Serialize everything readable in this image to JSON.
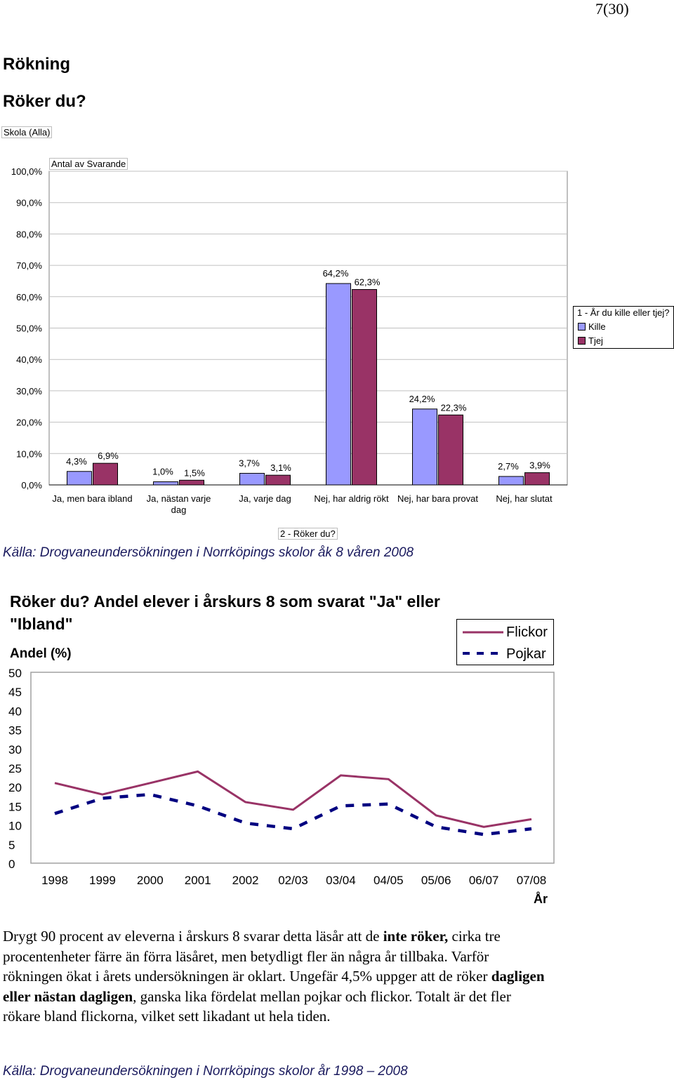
{
  "page_number": "7(30)",
  "section_title": "Rökning",
  "question_title": "Röker du?",
  "pivot_filter": "Skola (Alla)",
  "pivot_field": "Antal av Svarande",
  "legend1_title": "1 - År du kille eller tjej?",
  "axis_field": "2 - Röker du?",
  "source1": "Källa: Drogvaneundersökningen i Norrköpings skolor åk 8 våren 2008",
  "chart2_title": "Röker du? Andel elever i årskurs 8 som svarat \"Ja\" eller \"Ibland\"",
  "chart2_ylabel": "Andel (%)",
  "chart2_xlabel": "År",
  "source2": "Källa: Drogvaneundersökningen i Norrköpings skolor år 1998 – 2008",
  "paragraph_html": "Drygt 90 procent av eleverna i årskurs 8 svarar detta läsår att de <b>inte röker,</b> cirka tre procentenheter färre än förra läsåret, men betydligt fler än några år tillbaka. Varför rökningen ökat i årets undersökningen är oklart. Ungefär 4,5% uppger att de röker <b>dagligen eller nästan dagligen</b>, ganska lika fördelat mellan pojkar och flickor. Totalt är det fler rökare bland flickorna, vilket sett likadant ut hela tiden.",
  "colors": {
    "kille": "#9999ff",
    "tjej": "#993366",
    "pojkar": "#000080",
    "flickor": "#993366"
  },
  "chart_data": [
    {
      "type": "bar",
      "title": "",
      "categories": [
        [
          "Ja, men bara ibland"
        ],
        [
          "Ja, nästan varje",
          "dag"
        ],
        [
          "Ja, varje dag"
        ],
        [
          "Nej, har aldrig rökt"
        ],
        [
          "Nej, har bara provat"
        ],
        [
          "Nej, har slutat"
        ]
      ],
      "series": [
        {
          "name": "Kille",
          "values": [
            4.3,
            1.0,
            3.7,
            64.2,
            24.2,
            2.7
          ],
          "labels": [
            "4,3%",
            "1,0%",
            "3,7%",
            "64,2%",
            "24,2%",
            "2,7%"
          ]
        },
        {
          "name": "Tjej",
          "values": [
            6.9,
            1.5,
            3.1,
            62.3,
            22.3,
            3.9
          ],
          "labels": [
            "6,9%",
            "1,5%",
            "3,1%",
            "62,3%",
            "22,3%",
            "3,9%"
          ]
        }
      ],
      "ylim": [
        0,
        100
      ],
      "yticks": [
        "0,0%",
        "10,0%",
        "20,0%",
        "30,0%",
        "40,0%",
        "50,0%",
        "60,0%",
        "70,0%",
        "80,0%",
        "90,0%",
        "100,0%"
      ],
      "xlabel": "2 - Röker du?",
      "ylabel": "",
      "legend": "right",
      "grid": true
    },
    {
      "type": "line",
      "title": "Röker du? Andel elever i årskurs 8 som svarat \"Ja\" eller \"Ibland\"",
      "x": [
        "1998",
        "1999",
        "2000",
        "2001",
        "2002",
        "02/03",
        "03/04",
        "04/05",
        "05/06",
        "06/07",
        "07/08"
      ],
      "series": [
        {
          "name": "Flickor",
          "values": [
            21,
            18,
            21,
            24,
            16,
            14,
            23,
            22,
            12.5,
            9.5,
            11.5
          ]
        },
        {
          "name": "Pojkar",
          "values": [
            13,
            17,
            18,
            15,
            10.5,
            9,
            15,
            15.5,
            9.5,
            7.5,
            9
          ]
        }
      ],
      "ylim": [
        0,
        50
      ],
      "yticks": [
        "0",
        "5",
        "10",
        "15",
        "20",
        "25",
        "30",
        "35",
        "40",
        "45",
        "50"
      ],
      "xlabel": "År",
      "ylabel": "Andel (%)",
      "legend": "top-right",
      "grid": false
    }
  ]
}
